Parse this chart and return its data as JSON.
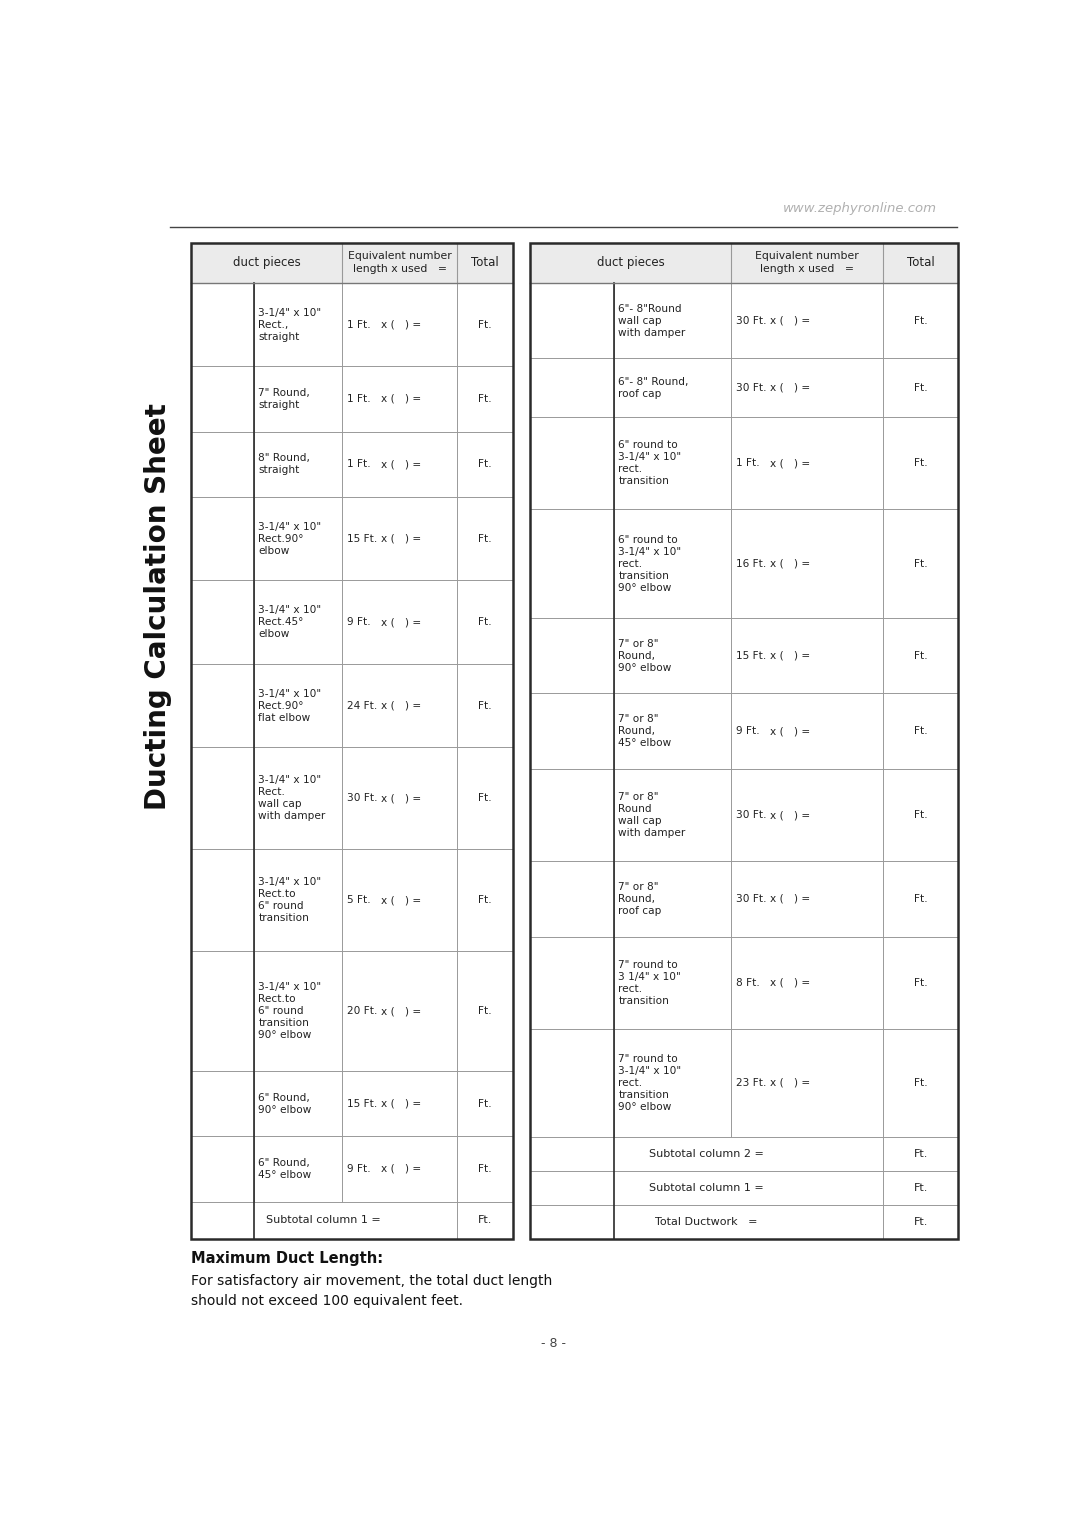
{
  "website": "www.zephyronline.com",
  "page_number": "- 8 -",
  "sidebar_text": "Ducting Calculation Sheet",
  "max_duct_title": "Maximum Duct Length:",
  "max_duct_body": "For satisfactory air movement, the total duct length\nshould not exceed 100 equivalent feet.",
  "left_rows": [
    {
      "desc": "3-1/4\" x 10\"\nRect.,\nstraight",
      "equiv": "1 Ft.",
      "total": "Ft."
    },
    {
      "desc": "7\" Round,\nstraight",
      "equiv": "1 Ft.",
      "total": "Ft."
    },
    {
      "desc": "8\" Round,\nstraight",
      "equiv": "1 Ft.",
      "total": "Ft."
    },
    {
      "desc": "3-1/4\" x 10\"\nRect.90°\nelbow",
      "equiv": "15 Ft.",
      "total": "Ft."
    },
    {
      "desc": "3-1/4\" x 10\"\nRect.45°\nelbow",
      "equiv": "9 Ft.",
      "total": "Ft."
    },
    {
      "desc": "3-1/4\" x 10\"\nRect.90°\nflat elbow",
      "equiv": "24 Ft.",
      "total": "Ft."
    },
    {
      "desc": "3-1/4\" x 10\"\nRect.\nwall cap\nwith damper",
      "equiv": "30 Ft.",
      "total": "Ft."
    },
    {
      "desc": "3-1/4\" x 10\"\nRect.to\n6\" round\ntransition",
      "equiv": "5 Ft.",
      "total": "Ft."
    },
    {
      "desc": "3-1/4\" x 10\"\nRect.to\n6\" round\ntransition\n90° elbow",
      "equiv": "20 Ft.",
      "total": "Ft."
    },
    {
      "desc": "6\" Round,\n90° elbow",
      "equiv": "15 Ft.",
      "total": "Ft."
    },
    {
      "desc": "6\" Round,\n45° elbow",
      "equiv": "9 Ft.",
      "total": "Ft."
    },
    {
      "desc": "Subtotal column 1 =",
      "equiv": "",
      "total": "Ft.",
      "subtotal": true
    }
  ],
  "right_rows": [
    {
      "desc": "6\"- 8\"Round\nwall cap\nwith damper",
      "equiv": "30 Ft.",
      "total": "Ft."
    },
    {
      "desc": "6\"- 8\" Round,\nroof cap",
      "equiv": "30 Ft.",
      "total": "Ft."
    },
    {
      "desc": "6\" round to\n3-1/4\" x 10\"\nrect.\ntransition",
      "equiv": "1 Ft.",
      "total": "Ft."
    },
    {
      "desc": "6\" round to\n3-1/4\" x 10\"\nrect.\ntransition\n90° elbow",
      "equiv": "16 Ft.",
      "total": "Ft."
    },
    {
      "desc": "7\" or 8\"\nRound,\n90° elbow",
      "equiv": "15 Ft.",
      "total": "Ft."
    },
    {
      "desc": "7\" or 8\"\nRound,\n45° elbow",
      "equiv": "9 Ft.",
      "total": "Ft."
    },
    {
      "desc": "7\" or 8\"\nRound\nwall cap\nwith damper",
      "equiv": "30 Ft.",
      "total": "Ft."
    },
    {
      "desc": "7\" or 8\"\nRound,\nroof cap",
      "equiv": "30 Ft.",
      "total": "Ft."
    },
    {
      "desc": "7\" round to\n3 1/4\" x 10\"\nrect.\ntransition",
      "equiv": "8 Ft.",
      "total": "Ft."
    },
    {
      "desc": "7\" round to\n3-1/4\" x 10\"\nrect.\ntransition\n90° elbow",
      "equiv": "23 Ft.",
      "total": "Ft."
    },
    {
      "desc": "Subtotal column 2 =",
      "equiv": "",
      "total": "Ft.",
      "subtotal": true
    },
    {
      "desc": "Subtotal column 1 =",
      "equiv": "",
      "total": "Ft.",
      "subtotal": true
    },
    {
      "desc": "Total Ductwork   =",
      "equiv": "",
      "total": "Ft.",
      "subtotal": true
    }
  ],
  "bg_color": "#ffffff",
  "table_border_color": "#2a2a2a",
  "grid_color": "#999999",
  "header_color": "#222222",
  "website_color": "#b0b0b0",
  "sidebar_text_color": "#111111"
}
